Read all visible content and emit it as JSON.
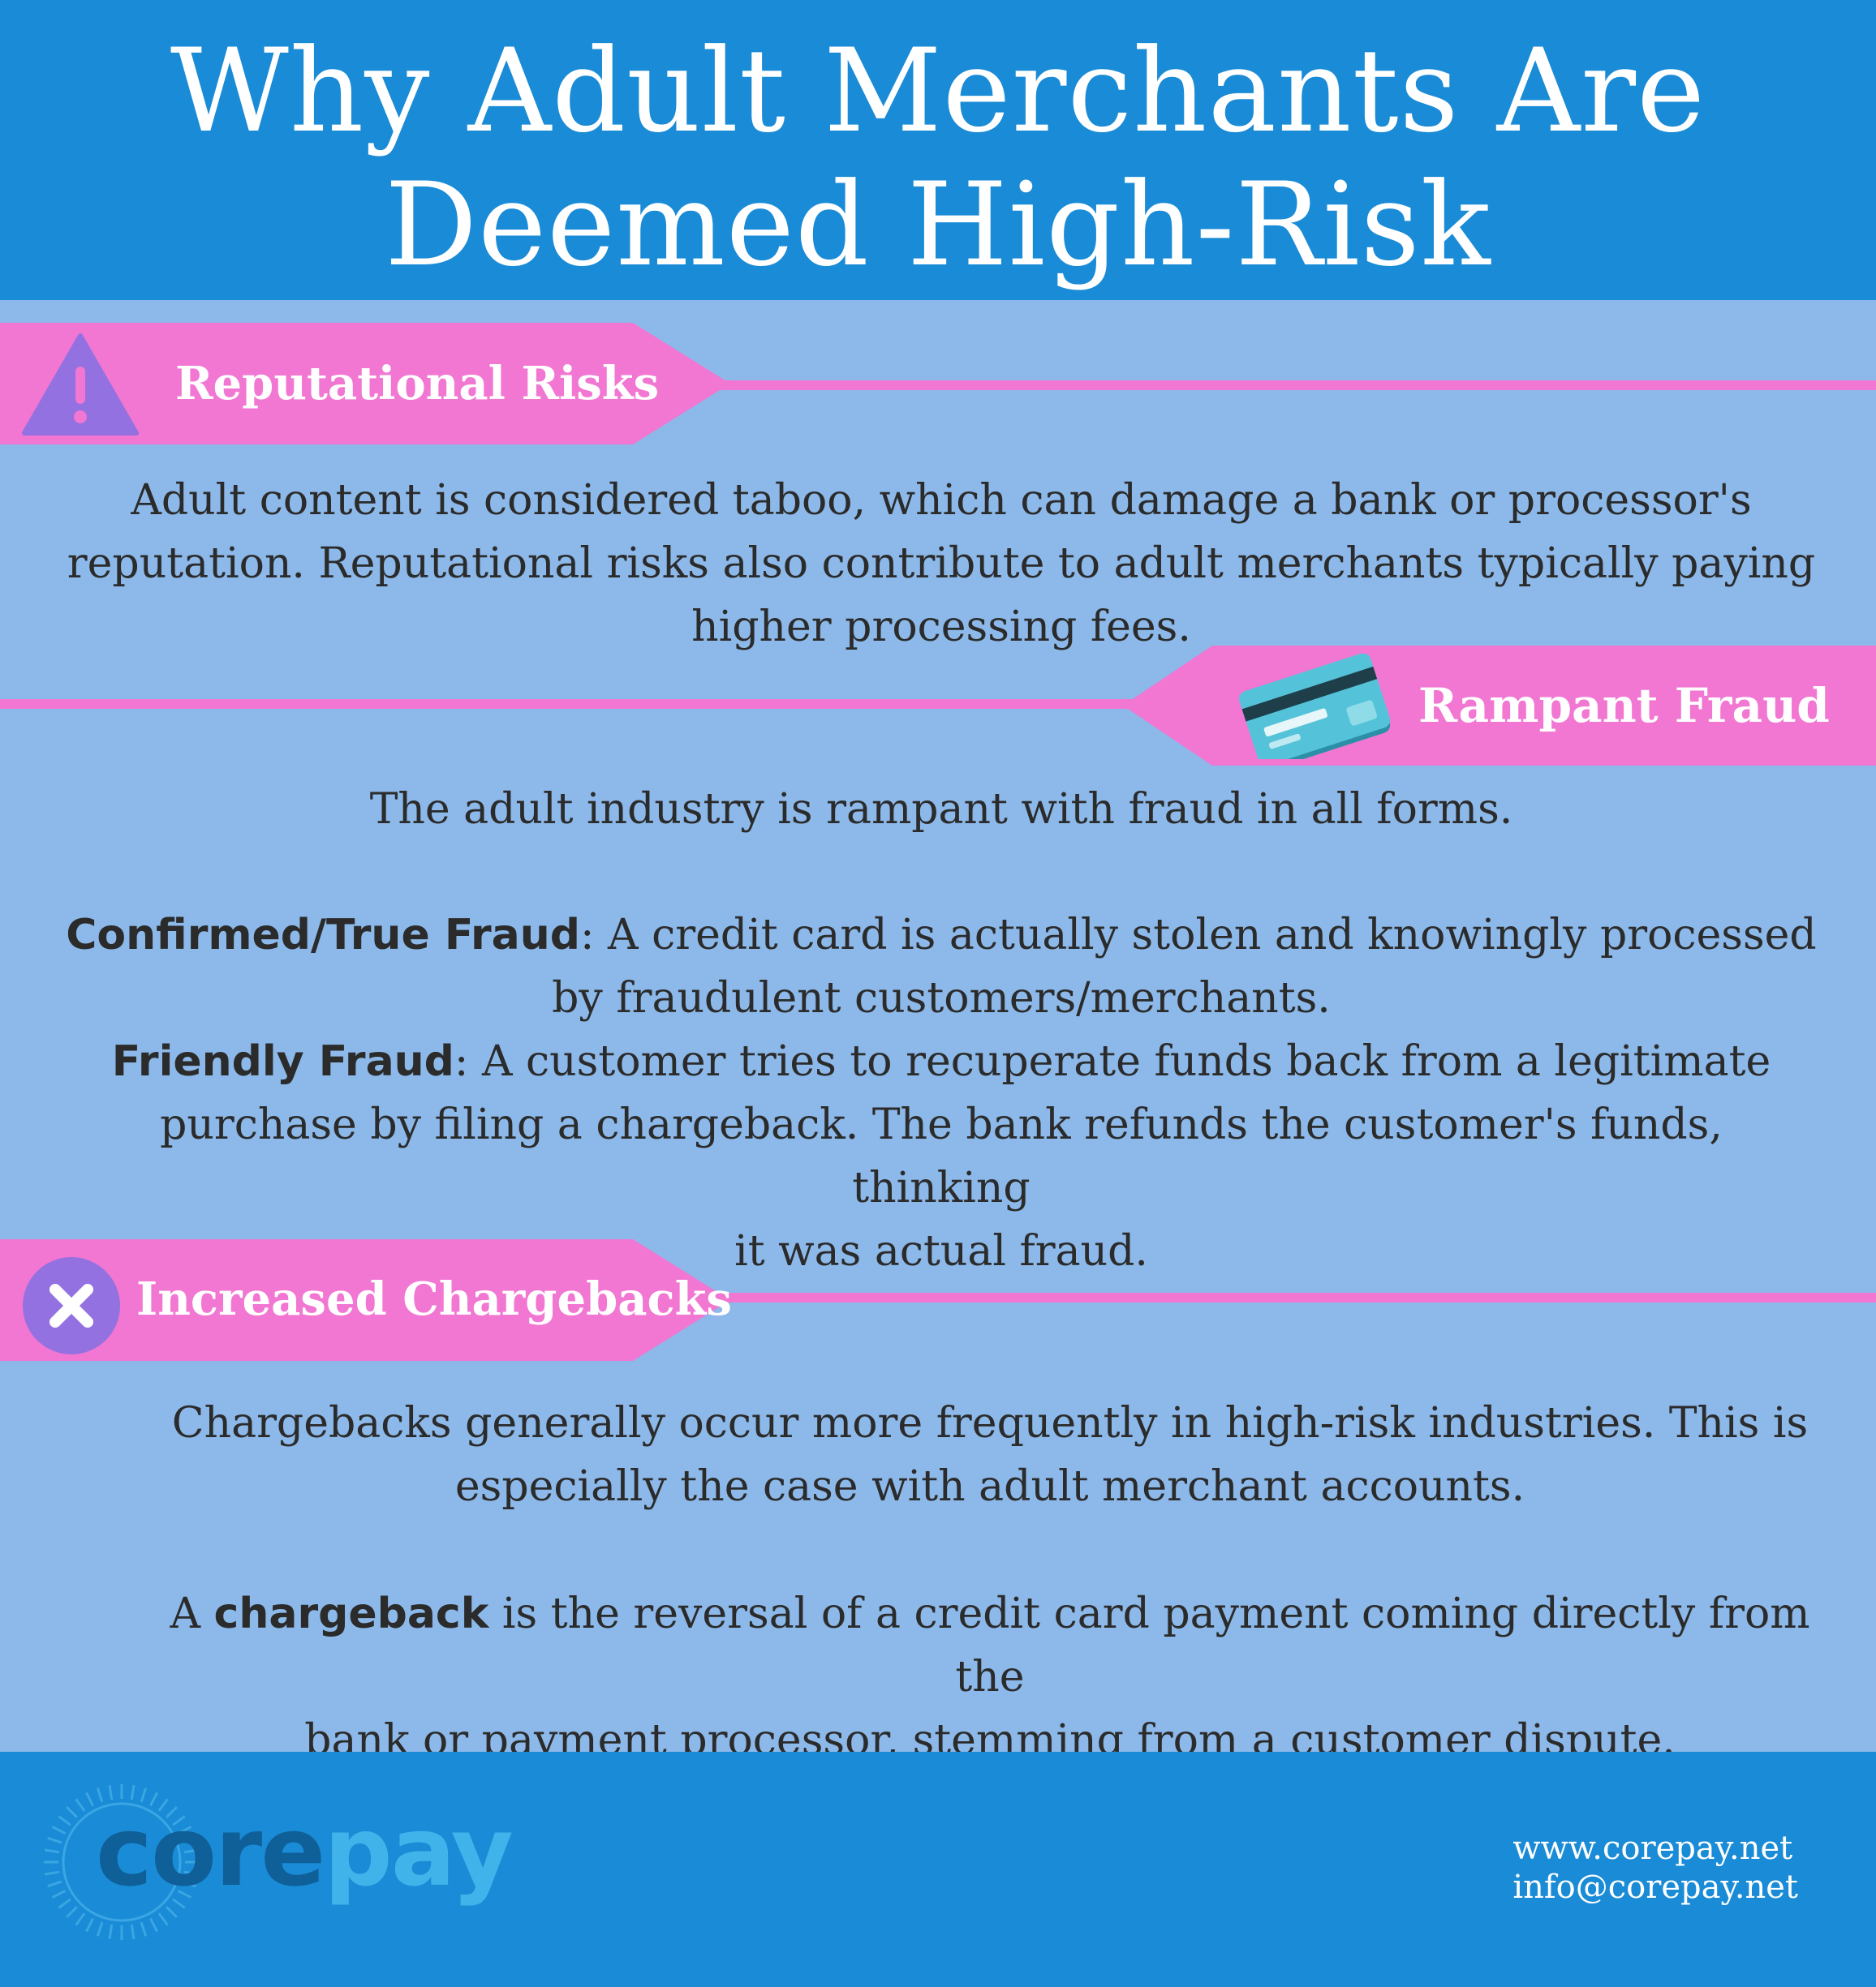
{
  "header": {
    "title_line1": "Why Adult Merchants Are",
    "title_line2": "Deemed High-Risk"
  },
  "sections": {
    "reputational": {
      "title": "Reputational Risks",
      "icon": "warning-triangle-icon",
      "line1": "Adult content is considered taboo, which can damage a bank or processor's",
      "line2": "reputation.  Reputational risks also contribute to adult merchants typically paying",
      "line3": "higher processing fees."
    },
    "fraud": {
      "title": "Rampant Fraud",
      "icon": "credit-card-icon",
      "intro": "The adult industry is rampant with fraud in all forms.",
      "confirmed_term": "Confirmed/True Fraud",
      "confirmed_text1": ": A credit card is actually stolen and knowingly processed",
      "confirmed_text2": "by fraudulent customers/merchants.",
      "friendly_term": "Friendly Fraud",
      "friendly_text1": ": A customer tries to recuperate funds back from a legitimate",
      "friendly_text2": "purchase by filing a chargeback.  The bank refunds the customer's funds, thinking",
      "friendly_text3": "it was actual fraud."
    },
    "chargebacks": {
      "title": "Increased Chargebacks",
      "icon": "x-circle-icon",
      "line1": "Chargebacks generally occur more frequently in high-risk industries.  This is",
      "line2": "especially the case with adult merchant accounts.",
      "def_prefix": "A ",
      "def_term": "chargeback",
      "def_text1": " is the reversal of a credit card payment coming directly from the",
      "def_text2": "bank or payment processor, stemming from a customer dispute."
    }
  },
  "footer": {
    "logo_core": "core",
    "logo_pay": "pay",
    "website": "www.corepay.net",
    "email": "info@corepay.net"
  },
  "colors": {
    "header_blue": "#1a8bd6",
    "body_blue": "#8cb9e9",
    "banner_pink": "#f177d2",
    "icon_purple": "#9471e0"
  }
}
